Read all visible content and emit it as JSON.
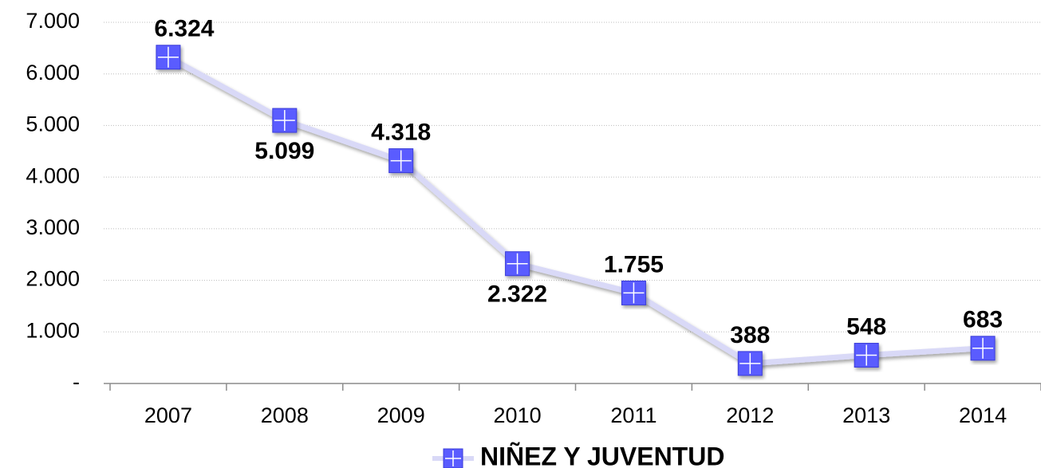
{
  "chart_data": {
    "type": "line",
    "categories": [
      "2007",
      "2008",
      "2009",
      "2010",
      "2011",
      "2012",
      "2013",
      "2014"
    ],
    "series": [
      {
        "name": "NIÑEZ Y JUVENTUD",
        "color": "#5a5cff",
        "line_color": "#d9d9f7",
        "values": [
          6324,
          5099,
          4318,
          2322,
          1755,
          388,
          548,
          683
        ],
        "value_labels": [
          "6.324",
          "5.099",
          "4.318",
          "2.322",
          "1.755",
          "388",
          "548",
          "683"
        ]
      }
    ],
    "ylim": [
      0,
      7000
    ],
    "yticks": [
      {
        "value": 0,
        "label": "-"
      },
      {
        "value": 1000,
        "label": "1.000"
      },
      {
        "value": 2000,
        "label": "2.000"
      },
      {
        "value": 3000,
        "label": "3.000"
      },
      {
        "value": 4000,
        "label": "4.000"
      },
      {
        "value": 5000,
        "label": "5.000"
      },
      {
        "value": 6000,
        "label": "6.000"
      },
      {
        "value": 7000,
        "label": "7.000"
      }
    ],
    "grid": true,
    "legend": "bottom"
  }
}
